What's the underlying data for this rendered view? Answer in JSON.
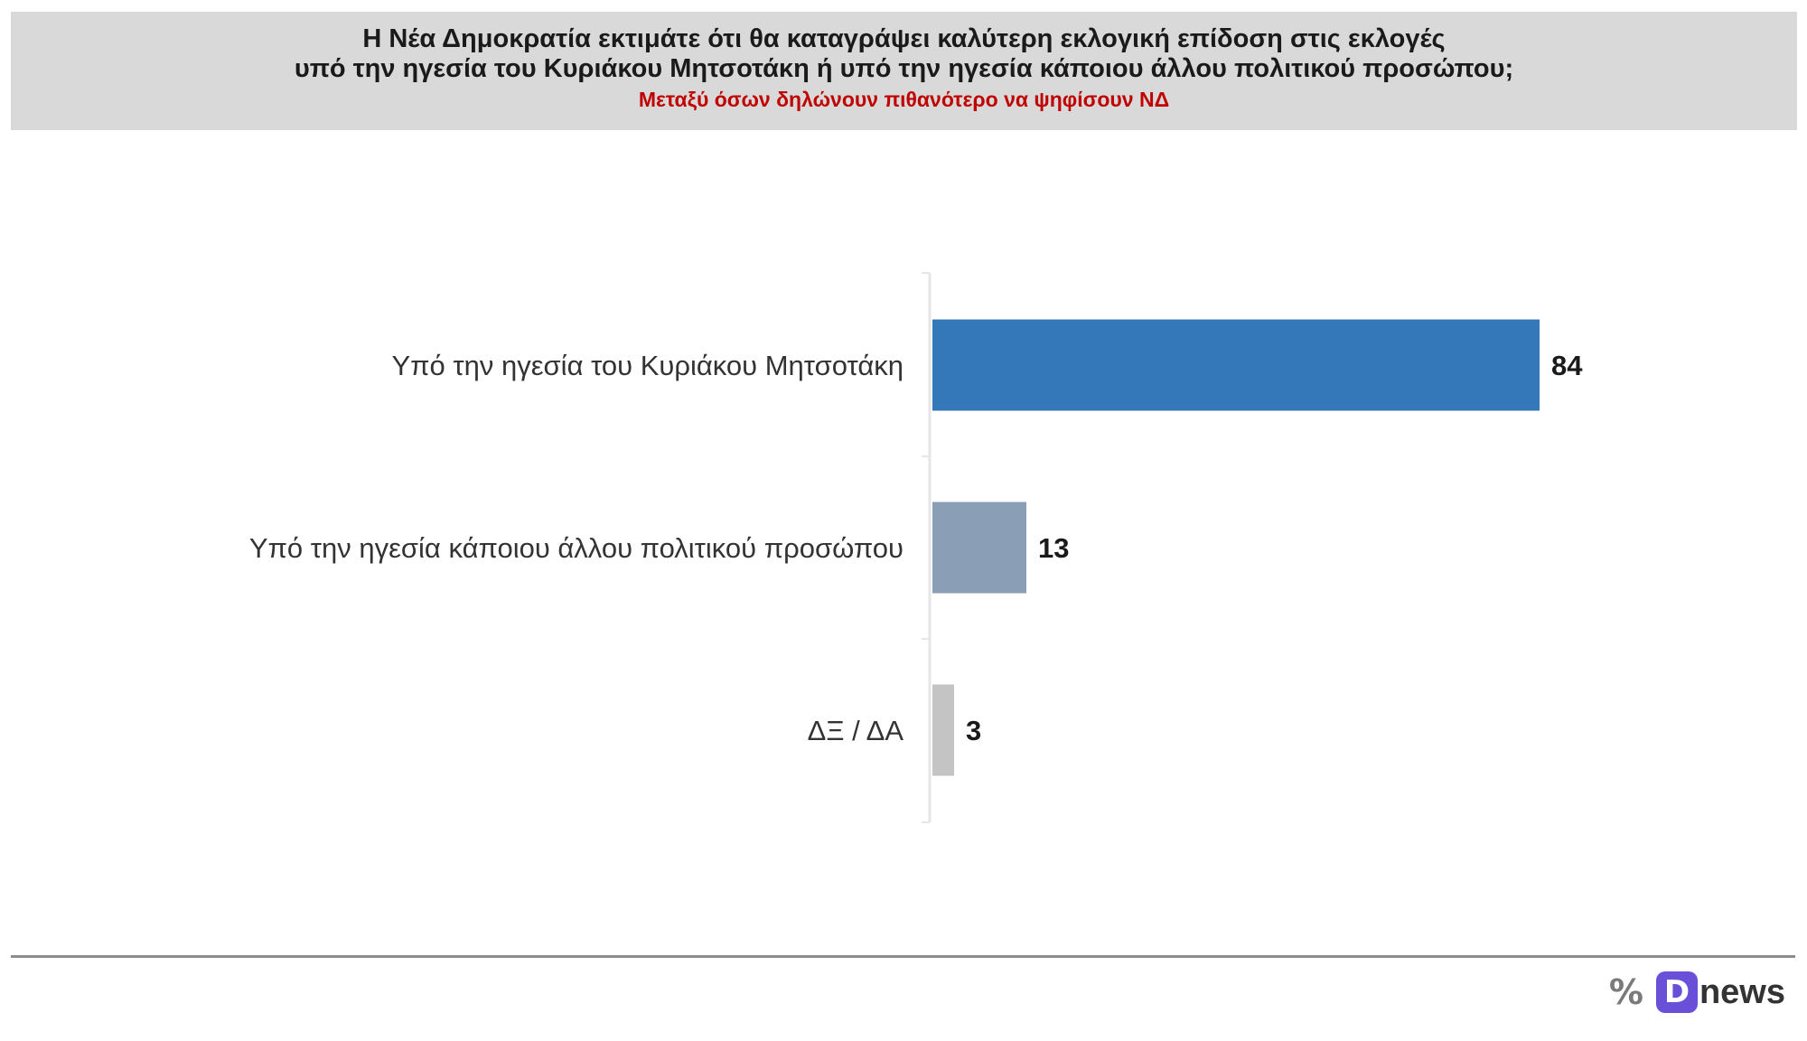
{
  "header": {
    "title_line1": "Η Νέα Δημοκρατία εκτιμάτε ότι θα καταγράψει καλύτερη εκλογική επίδοση στις εκλογές",
    "title_line2": "υπό την ηγεσία του Κυριάκου Μητσοτάκη ή υπό την ηγεσία κάποιου άλλου πολιτικού προσώπου;",
    "subtitle": "Μεταξύ όσων δηλώνουν πιθανότερο να ψηφίσουν ΝΔ"
  },
  "chart_data": {
    "type": "bar",
    "orientation": "horizontal",
    "categories": [
      "Υπό την ηγεσία του Κυριάκου Μητσοτάκη",
      "Υπό την ηγεσία κάποιου άλλου πολιτικού προσώπου",
      "ΔΞ / ΔΑ"
    ],
    "values": [
      84,
      13,
      3
    ],
    "colors": [
      "#3478b9",
      "#8a9fb5",
      "#c4c4c4"
    ],
    "xlim": [
      0,
      100
    ],
    "data_labels": [
      "84",
      "13",
      "3"
    ],
    "grid": false,
    "legend": "none"
  },
  "logo": {
    "percent_icon": "%",
    "d_icon": "D",
    "brand_text": "news",
    "brand_color": "#6a4fd8"
  }
}
